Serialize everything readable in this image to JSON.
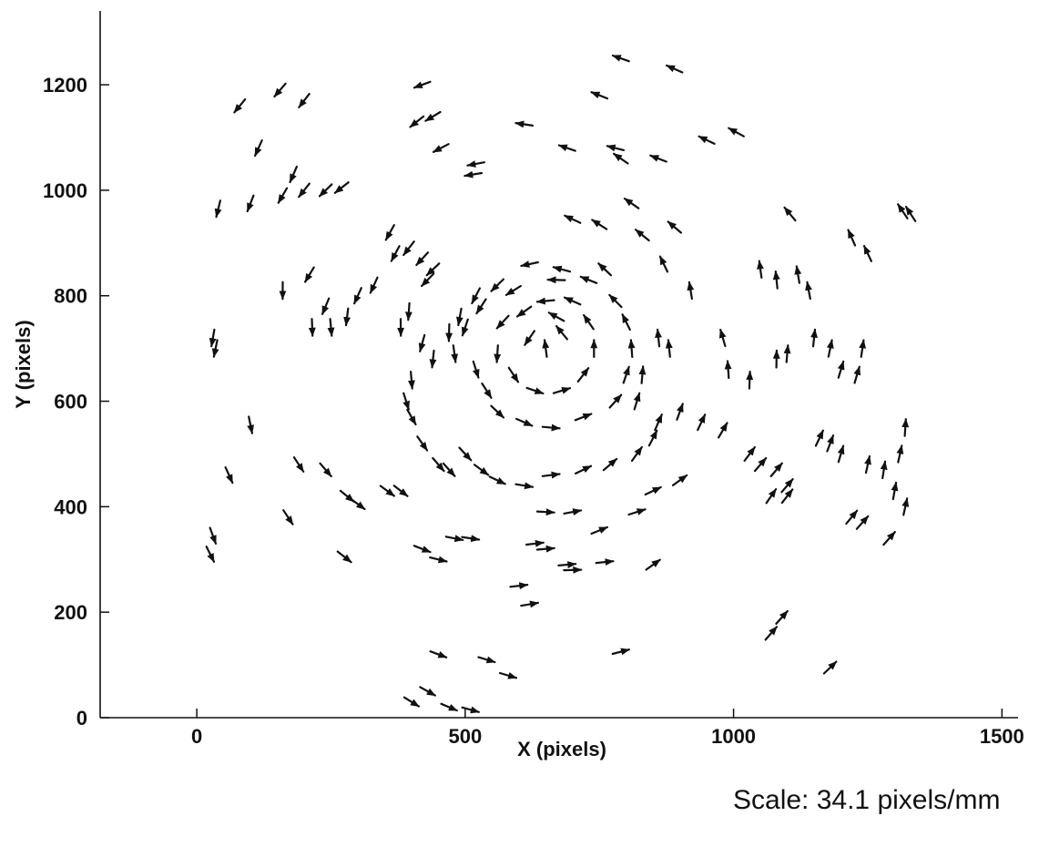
{
  "chart_data": {
    "type": "scatter",
    "subtype": "vector-field",
    "title": "",
    "xlabel": "X (pixels)",
    "ylabel": "Y (pixels)",
    "xlim": [
      -180,
      1530
    ],
    "ylim": [
      0,
      1340
    ],
    "xticks": [
      0,
      500,
      1000,
      1500
    ],
    "yticks": [
      0,
      200,
      400,
      600,
      800,
      1000,
      1200
    ],
    "grid": false,
    "legend": "none",
    "arrow_color": "#111111",
    "field": {
      "center": [
        640,
        700
      ],
      "rotation": "counterclockwise",
      "arrow_length": 32
    },
    "vectors_xy": [
      [
        80,
        1160
      ],
      [
        155,
        1190
      ],
      [
        200,
        1170
      ],
      [
        115,
        1080
      ],
      [
        180,
        1030
      ],
      [
        410,
        1130
      ],
      [
        440,
        1140
      ],
      [
        455,
        1080
      ],
      [
        420,
        1200
      ],
      [
        520,
        1050
      ],
      [
        515,
        1030
      ],
      [
        610,
        1125
      ],
      [
        690,
        1080
      ],
      [
        750,
        1180
      ],
      [
        790,
        1250
      ],
      [
        890,
        1230
      ],
      [
        780,
        1080
      ],
      [
        860,
        1060
      ],
      [
        950,
        1095
      ],
      [
        1005,
        1110
      ],
      [
        40,
        965
      ],
      [
        100,
        975
      ],
      [
        160,
        990
      ],
      [
        200,
        1000
      ],
      [
        240,
        1000
      ],
      [
        270,
        1005
      ],
      [
        790,
        1060
      ],
      [
        700,
        945
      ],
      [
        750,
        935
      ],
      [
        810,
        975
      ],
      [
        830,
        915
      ],
      [
        890,
        930
      ],
      [
        1105,
        955
      ],
      [
        1315,
        960
      ],
      [
        1330,
        955
      ],
      [
        360,
        920
      ],
      [
        370,
        880
      ],
      [
        395,
        890
      ],
      [
        420,
        870
      ],
      [
        440,
        850
      ],
      [
        430,
        830
      ],
      [
        210,
        840
      ],
      [
        240,
        780
      ],
      [
        300,
        800
      ],
      [
        330,
        820
      ],
      [
        280,
        760
      ],
      [
        215,
        740
      ],
      [
        250,
        740
      ],
      [
        160,
        810
      ],
      [
        395,
        770
      ],
      [
        380,
        740
      ],
      [
        620,
        860
      ],
      [
        680,
        850
      ],
      [
        760,
        850
      ],
      [
        870,
        860
      ],
      [
        920,
        810
      ],
      [
        1050,
        850
      ],
      [
        1080,
        830
      ],
      [
        1120,
        840
      ],
      [
        1140,
        810
      ],
      [
        1220,
        910
      ],
      [
        1250,
        880
      ],
      [
        560,
        820
      ],
      [
        520,
        800
      ],
      [
        490,
        760
      ],
      [
        470,
        730
      ],
      [
        480,
        690
      ],
      [
        520,
        660
      ],
      [
        540,
        620
      ],
      [
        560,
        580
      ],
      [
        610,
        560
      ],
      [
        660,
        550
      ],
      [
        720,
        570
      ],
      [
        780,
        600
      ],
      [
        800,
        650
      ],
      [
        810,
        700
      ],
      [
        800,
        750
      ],
      [
        780,
        790
      ],
      [
        730,
        830
      ],
      [
        670,
        830
      ],
      [
        590,
        810
      ],
      [
        530,
        780
      ],
      [
        500,
        740
      ],
      [
        570,
        750
      ],
      [
        560,
        690
      ],
      [
        590,
        650
      ],
      [
        630,
        620
      ],
      [
        680,
        620
      ],
      [
        720,
        650
      ],
      [
        740,
        700
      ],
      [
        730,
        750
      ],
      [
        700,
        790
      ],
      [
        650,
        790
      ],
      [
        610,
        770
      ],
      [
        620,
        720
      ],
      [
        650,
        700
      ],
      [
        680,
        730
      ],
      [
        670,
        760
      ],
      [
        30,
        720
      ],
      [
        35,
        700
      ],
      [
        420,
        710
      ],
      [
        440,
        680
      ],
      [
        400,
        640
      ],
      [
        390,
        600
      ],
      [
        860,
        720
      ],
      [
        880,
        700
      ],
      [
        830,
        650
      ],
      [
        820,
        600
      ],
      [
        980,
        720
      ],
      [
        990,
        660
      ],
      [
        1030,
        640
      ],
      [
        1080,
        680
      ],
      [
        1100,
        690
      ],
      [
        1150,
        720
      ],
      [
        1180,
        700
      ],
      [
        1200,
        660
      ],
      [
        1230,
        650
      ],
      [
        1240,
        700
      ],
      [
        100,
        555
      ],
      [
        60,
        460
      ],
      [
        190,
        480
      ],
      [
        240,
        470
      ],
      [
        280,
        420
      ],
      [
        300,
        405
      ],
      [
        355,
        430
      ],
      [
        380,
        430
      ],
      [
        400,
        570
      ],
      [
        420,
        520
      ],
      [
        450,
        480
      ],
      [
        470,
        470
      ],
      [
        500,
        500
      ],
      [
        530,
        470
      ],
      [
        560,
        450
      ],
      [
        610,
        440
      ],
      [
        660,
        460
      ],
      [
        720,
        470
      ],
      [
        770,
        480
      ],
      [
        820,
        500
      ],
      [
        850,
        530
      ],
      [
        860,
        560
      ],
      [
        900,
        580
      ],
      [
        940,
        560
      ],
      [
        980,
        545
      ],
      [
        1030,
        500
      ],
      [
        1050,
        480
      ],
      [
        1080,
        470
      ],
      [
        1100,
        440
      ],
      [
        1160,
        530
      ],
      [
        1180,
        520
      ],
      [
        1200,
        500
      ],
      [
        1250,
        480
      ],
      [
        1280,
        470
      ],
      [
        1300,
        430
      ],
      [
        1320,
        400
      ],
      [
        1320,
        550
      ],
      [
        1310,
        500
      ],
      [
        1070,
        420
      ],
      [
        1100,
        420
      ],
      [
        1220,
        380
      ],
      [
        1240,
        370
      ],
      [
        1290,
        340
      ],
      [
        30,
        345
      ],
      [
        25,
        310
      ],
      [
        170,
        380
      ],
      [
        275,
        305
      ],
      [
        420,
        320
      ],
      [
        450,
        300
      ],
      [
        480,
        340
      ],
      [
        510,
        340
      ],
      [
        630,
        330
      ],
      [
        650,
        320
      ],
      [
        690,
        290
      ],
      [
        700,
        280
      ],
      [
        760,
        295
      ],
      [
        820,
        390
      ],
      [
        850,
        430
      ],
      [
        900,
        450
      ],
      [
        650,
        390
      ],
      [
        700,
        390
      ],
      [
        750,
        355
      ],
      [
        850,
        290
      ],
      [
        600,
        250
      ],
      [
        620,
        215
      ],
      [
        1070,
        160
      ],
      [
        1090,
        190
      ],
      [
        1180,
        95
      ],
      [
        450,
        120
      ],
      [
        540,
        110
      ],
      [
        580,
        80
      ],
      [
        400,
        30
      ],
      [
        430,
        50
      ],
      [
        470,
        20
      ],
      [
        510,
        15
      ],
      [
        790,
        125
      ]
    ],
    "annotation": "Scale: 34.1 pixels/mm"
  }
}
